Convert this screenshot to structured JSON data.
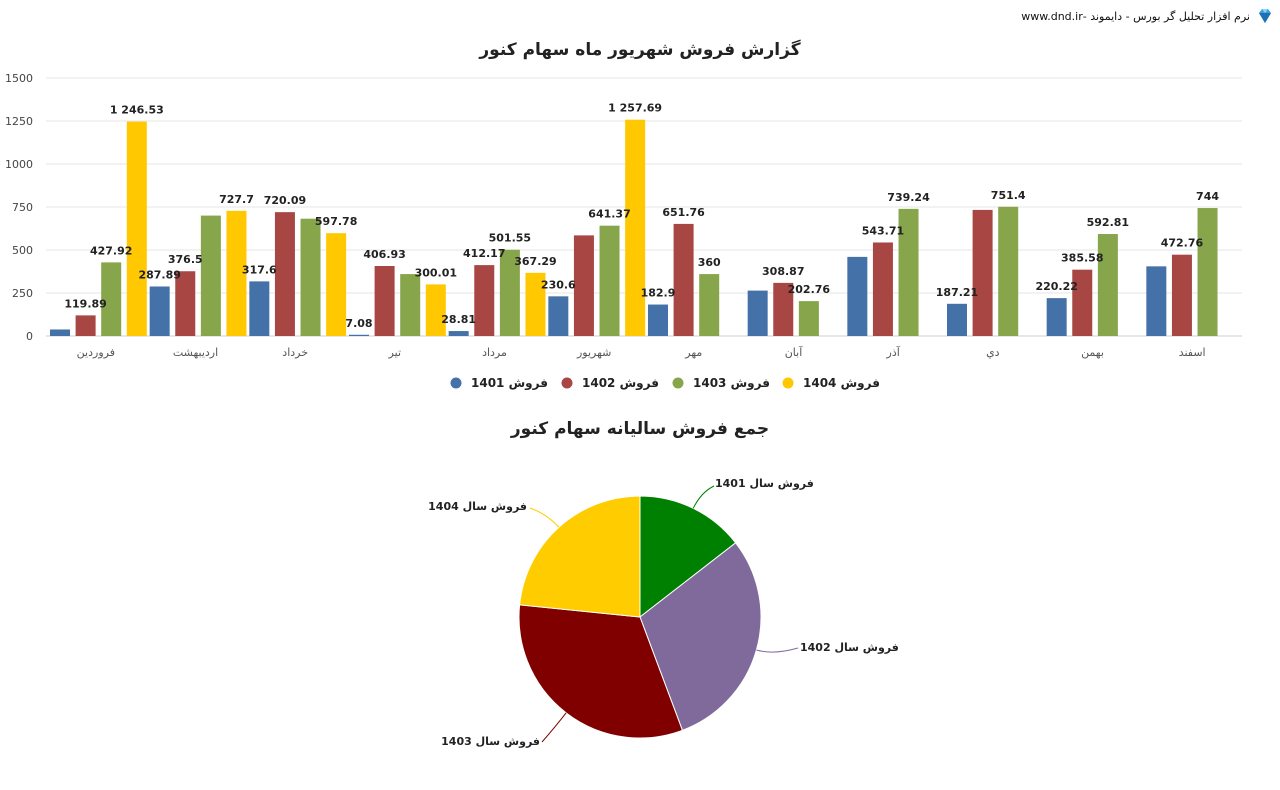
{
  "brand": {
    "text": "نرم افزار تحلیل گر بورس - دایموند -www.dnd.ir",
    "icon": "diamond-icon"
  },
  "chart_data": [
    {
      "type": "bar",
      "title": "گزارش فروش شهریور ماه سهام کنور",
      "categories": [
        "فروردين",
        "ارديبهشت",
        "خرداد",
        "تير",
        "مرداد",
        "شهريور",
        "مهر",
        "آبان",
        "آذر",
        "دي",
        "بهمن",
        "اسفند"
      ],
      "series": [
        {
          "name": "فروش 1401",
          "color": "#4472a8",
          "values": [
            38,
            287.89,
            317.6,
            7.08,
            28.81,
            230.6,
            182.9,
            264,
            460,
            187.21,
            220.22,
            405
          ]
        },
        {
          "name": "فروش 1402",
          "color": "#a84643",
          "values": [
            119.89,
            376.5,
            720.09,
            406.93,
            412.17,
            585,
            651.76,
            308.87,
            543.71,
            733,
            385.58,
            472.76
          ]
        },
        {
          "name": "فروش 1403",
          "color": "#87a54b",
          "values": [
            427.92,
            700,
            682,
            360,
            501.55,
            641.37,
            360,
            202.76,
            739.24,
            751.4,
            592.81,
            744
          ]
        },
        {
          "name": "فروش 1404",
          "color": "#ffc800",
          "values": [
            1246.53,
            727.7,
            597.78,
            300.01,
            367.29,
            1257.69,
            null,
            null,
            null,
            null,
            null,
            null
          ]
        }
      ],
      "data_labels": [
        [
          "",
          "119.89",
          "427.92",
          "1 246.53"
        ],
        [
          "287.89",
          "376.5",
          "",
          "727.7"
        ],
        [
          "317.6",
          "720.09",
          "",
          "597.78"
        ],
        [
          "7.08",
          "406.93",
          "",
          "300.01"
        ],
        [
          "28.81",
          "412.17",
          "501.55",
          "367.29"
        ],
        [
          "230.6",
          "",
          "641.37",
          "1 257.69"
        ],
        [
          "182.9",
          "651.76",
          "360",
          ""
        ],
        [
          "",
          "308.87",
          "202.76",
          ""
        ],
        [
          "",
          "543.71",
          "739.24",
          ""
        ],
        [
          "187.21",
          "",
          "751.4",
          ""
        ],
        [
          "220.22",
          "385.58",
          "592.81",
          ""
        ],
        [
          "",
          "472.76",
          "744",
          ""
        ]
      ],
      "ylim": [
        0,
        1500
      ],
      "yticks": [
        "0",
        "250",
        "500",
        "750",
        "1000",
        "1250",
        "1500"
      ],
      "grid": true,
      "legend": "bottom"
    },
    {
      "type": "pie",
      "title": "جمع فروش سالیانه سهام کنور",
      "slices": [
        {
          "label": "فروش سال 1401",
          "value": 14.5,
          "color": "#008000",
          "line_color": "#008000"
        },
        {
          "label": "فروش سال 1402",
          "value": 29.8,
          "color": "#806a9b",
          "line_color": "#806a9b"
        },
        {
          "label": "فروش سال 1403",
          "value": 32.3,
          "color": "#800000",
          "line_color": "#800000"
        },
        {
          "label": "فروش سال 1404",
          "value": 23.4,
          "color": "#ffcc00",
          "line_color": "#ffcc00"
        }
      ]
    }
  ]
}
